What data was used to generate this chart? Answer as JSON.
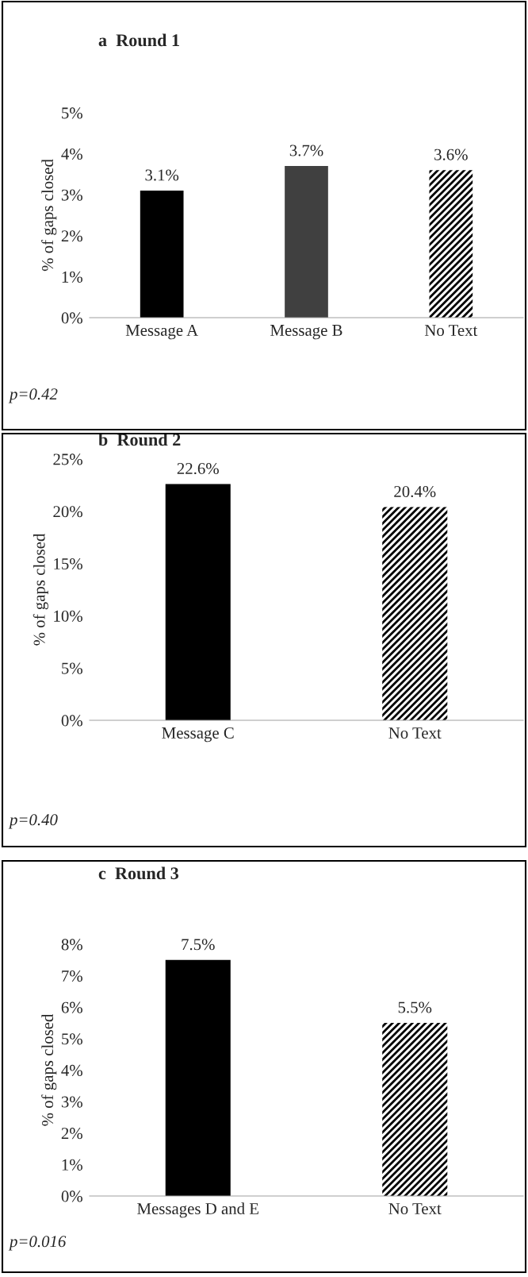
{
  "chart_data": [
    {
      "type": "bar",
      "title": "a  Round 1",
      "ylabel": "% of gaps closed",
      "categories": [
        "Message A",
        "Message B",
        "No Text"
      ],
      "values": [
        3.1,
        3.7,
        3.6
      ],
      "colors": [
        "#000000",
        "#404040",
        "#ffffff"
      ],
      "value_labels": [
        "3.1%",
        "3.7%",
        "3.6%"
      ],
      "ylim": [
        0,
        5
      ],
      "yticks": [
        {
          "value": 0,
          "label": "0%"
        },
        {
          "value": 1,
          "label": "1%"
        },
        {
          "value": 2,
          "label": "2%"
        },
        {
          "value": 3,
          "label": "3%"
        },
        {
          "value": 4,
          "label": "4%"
        },
        {
          "value": 5,
          "label": "5%"
        }
      ],
      "annotations": [
        "p=0.42"
      ],
      "grid": false,
      "legend": false
    },
    {
      "type": "bar",
      "title": "b  Round 2",
      "ylabel": "% of gaps closed",
      "categories": [
        "Message C",
        "No Text"
      ],
      "values": [
        22.6,
        20.4
      ],
      "colors": [
        "#000000",
        "#ffffff"
      ],
      "value_labels": [
        "22.6%",
        "20.4%"
      ],
      "ylim": [
        0,
        25
      ],
      "yticks": [
        {
          "value": 0,
          "label": "0%"
        },
        {
          "value": 5,
          "label": "5%"
        },
        {
          "value": 10,
          "label": "10%"
        },
        {
          "value": 15,
          "label": "15%"
        },
        {
          "value": 20,
          "label": "20%"
        },
        {
          "value": 25,
          "label": "25%"
        }
      ],
      "annotations": [
        "p=0.40"
      ],
      "grid": false,
      "legend": false
    },
    {
      "type": "bar",
      "title": "c  Round 3",
      "ylabel": "% of gaps closed",
      "categories": [
        "Messages D and E",
        "No Text"
      ],
      "values": [
        7.5,
        5.5
      ],
      "colors": [
        "#000000",
        "#ffffff"
      ],
      "value_labels": [
        "7.5%",
        "5.5%"
      ],
      "ylim": [
        0,
        8
      ],
      "yticks": [
        {
          "value": 0,
          "label": "0%"
        },
        {
          "value": 1,
          "label": "1%"
        },
        {
          "value": 2,
          "label": "2%"
        },
        {
          "value": 3,
          "label": "3%"
        },
        {
          "value": 4,
          "label": "4%"
        },
        {
          "value": 5,
          "label": "5%"
        },
        {
          "value": 6,
          "label": "6%"
        },
        {
          "value": 7,
          "label": "7%"
        },
        {
          "value": 8,
          "label": "8%"
        }
      ],
      "annotations": [
        "p=0.016"
      ],
      "grid": false,
      "legend": false
    }
  ]
}
